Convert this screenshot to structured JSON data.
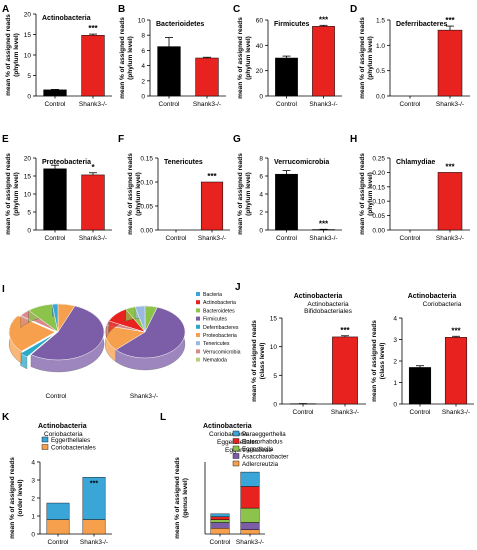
{
  "colors": {
    "control": "#000000",
    "shank": "#e8231f",
    "axis": "#000000",
    "blue": "#3aa6d8",
    "orange": "#f6a04d",
    "green": "#8cc34a",
    "purple": "#7b5ea7",
    "darkred": "#b23a48"
  },
  "common": {
    "ylabel_phylum": [
      "mean % of assigned reads",
      "(phylum level)"
    ],
    "ylabel_class": [
      "mean % of assigned reads",
      "(class level)"
    ],
    "ylabel_order": [
      "mean % of assigned reads",
      "(order level)"
    ],
    "ylabel_genus": [
      "mean % of assigned reads",
      "(genus level)"
    ],
    "categories": [
      "Control",
      "Shank3-/-"
    ]
  },
  "chart_data": [
    {
      "id": "A",
      "type": "bar",
      "letter": "A",
      "title": "Actinobacteria",
      "categories": [
        "Control",
        "Shank3-/-"
      ],
      "values": [
        1.5,
        14.8
      ],
      "errors": [
        0.1,
        0.3
      ],
      "ylim": [
        0,
        20
      ],
      "yticks": [
        "0",
        "5",
        "10",
        "15",
        "20"
      ],
      "sig": "***"
    },
    {
      "id": "B",
      "type": "bar",
      "letter": "B",
      "title": "Bacterioidetes",
      "categories": [
        "Control",
        "Shank3-/-"
      ],
      "values": [
        6.5,
        5.0
      ],
      "errors": [
        1.2,
        0.1
      ],
      "ylim": [
        0,
        10
      ],
      "yticks": [
        "0",
        "2",
        "4",
        "6",
        "8",
        "10"
      ],
      "sig": ""
    },
    {
      "id": "C",
      "type": "bar",
      "letter": "C",
      "title": "Firmicutes",
      "categories": [
        "Control",
        "Shank3-/-"
      ],
      "values": [
        30,
        55
      ],
      "errors": [
        1.5,
        0.8
      ],
      "ylim": [
        0,
        60
      ],
      "yticks": [
        "0",
        "20",
        "40",
        "60"
      ],
      "sig": "***"
    },
    {
      "id": "D",
      "type": "bar",
      "letter": "D",
      "title": "Deferribacteres",
      "categories": [
        "Control",
        "Shank3-/-"
      ],
      "values": [
        0,
        1.3
      ],
      "errors": [
        0,
        0.08
      ],
      "ylim": [
        0,
        1.5
      ],
      "yticks": [
        "0.0",
        "0.5",
        "1.0",
        "1.5"
      ],
      "sig": "***"
    },
    {
      "id": "E",
      "type": "bar",
      "letter": "E",
      "title": "Proteobacteria",
      "categories": [
        "Control",
        "Shank3-/-"
      ],
      "values": [
        17,
        15.3
      ],
      "errors": [
        1.0,
        0.6
      ],
      "ylim": [
        0,
        20
      ],
      "yticks": [
        "0",
        "5",
        "10",
        "15",
        "20"
      ],
      "sig": "*"
    },
    {
      "id": "F",
      "type": "bar",
      "letter": "F",
      "title": "Tenericutes",
      "categories": [
        "Control",
        "Shank3-/-"
      ],
      "values": [
        0,
        0.1
      ],
      "errors": [
        0,
        0
      ],
      "ylim": [
        0,
        0.15
      ],
      "yticks": [
        "0.00",
        "0.05",
        "0.10",
        "0.15"
      ],
      "sig": "***"
    },
    {
      "id": "G",
      "type": "bar",
      "letter": "G",
      "title": "Verrucomicrobia",
      "categories": [
        "Control",
        "Shank3-/-"
      ],
      "values": [
        6.2,
        0.05
      ],
      "errors": [
        0.4,
        0.03
      ],
      "ylim": [
        0,
        8
      ],
      "yticks": [
        "0",
        "2",
        "4",
        "6",
        "8"
      ],
      "sig": "***"
    },
    {
      "id": "H",
      "type": "bar",
      "letter": "H",
      "title": "Chlamydiae",
      "categories": [
        "Control",
        "Shank3-/-"
      ],
      "values": [
        0,
        0.2
      ],
      "errors": [
        0,
        0
      ],
      "ylim": [
        0,
        0.25
      ],
      "yticks": [
        "0.00",
        "0.05",
        "0.10",
        "0.15",
        "0.20",
        "0.25"
      ],
      "sig": "***"
    },
    {
      "id": "J1",
      "type": "bar",
      "letter": "J",
      "title": "Actinobacteria",
      "subtitle": [
        "Actinobacteria",
        "Bifidobacteriales"
      ],
      "categories": [
        "Control",
        "Shank3-/-"
      ],
      "values": [
        0.05,
        11.7
      ],
      "errors": [
        0.02,
        0.2
      ],
      "ylim": [
        0,
        15
      ],
      "yticks": [
        "0",
        "5",
        "10",
        "15"
      ],
      "sig": "***"
    },
    {
      "id": "J2",
      "type": "bar",
      "letter": "",
      "title": "Actinobacteria",
      "subtitle": [
        "Coriobacteria"
      ],
      "categories": [
        "Control",
        "Shank3-/-"
      ],
      "values": [
        1.7,
        3.1
      ],
      "errors": [
        0.08,
        0.05
      ],
      "ylim": [
        0,
        4
      ],
      "yticks": [
        "0",
        "1",
        "2",
        "3",
        "4"
      ],
      "sig": "***"
    },
    {
      "id": "K",
      "type": "stacked-bar",
      "letter": "K",
      "title": "Actinobacteria",
      "subtitle": [
        "Coriobacteria"
      ],
      "categories": [
        "Control",
        "Shank3-/-"
      ],
      "series": [
        {
          "name": "Coriobacteriales",
          "color": "#f6a04d",
          "values": [
            0.8,
            0.8
          ]
        },
        {
          "name": "Eggerthellales",
          "color": "#3aa6d8",
          "values": [
            0.92,
            2.35
          ]
        }
      ],
      "ylim": [
        0,
        4
      ],
      "yticks": [
        "0",
        "1",
        "2",
        "3",
        "4"
      ],
      "sig": "***"
    },
    {
      "id": "L",
      "type": "stacked-bar",
      "letter": "L",
      "title": "Actinobacteria",
      "subtitle": [
        "Coriobacteria",
        "Eggerthellales",
        "Eggerthellaceae"
      ],
      "categories": [
        "Control",
        "Shank3-/-"
      ],
      "series": [
        {
          "name": "Adlercreutzia",
          "color": "#f6a04d",
          "values": [
            0.2,
            0.15
          ]
        },
        {
          "name": "Asaccharobacter",
          "color": "#7b5ea7",
          "values": [
            0.2,
            0.25
          ]
        },
        {
          "name": "Eggerthella",
          "color": "#8cc34a",
          "values": [
            0.1,
            0.5
          ]
        },
        {
          "name": "Enterorhabdus",
          "color": "#e8231f",
          "values": [
            0.1,
            0.75
          ]
        },
        {
          "name": "Paraeggerthella",
          "color": "#3aa6d8",
          "values": [
            0.1,
            0.5
          ]
        }
      ],
      "ylim": [
        0,
        2.5
      ],
      "yticks": [],
      "sig": ""
    }
  ],
  "panelI": {
    "letter": "I",
    "legend": [
      {
        "name": "Bacteria",
        "color": "#3aa6d8"
      },
      {
        "name": "Actinobacteria",
        "color": "#e8231f"
      },
      {
        "name": "Bacteroidetes",
        "color": "#8cc34a"
      },
      {
        "name": "Firmicutes",
        "color": "#7b5ea7"
      },
      {
        "name": "Deferribacteres",
        "color": "#2aa9c9"
      },
      {
        "name": "Proteobacteria",
        "color": "#f6a04d"
      },
      {
        "name": "Tenericutes",
        "color": "#9bb8e0"
      },
      {
        "name": "Verrucomicrobia",
        "color": "#d98a8a"
      },
      {
        "name": "Nematoda",
        "color": "#b5cf7e"
      }
    ],
    "labels": [
      "Control",
      "Shank3-/-"
    ]
  }
}
